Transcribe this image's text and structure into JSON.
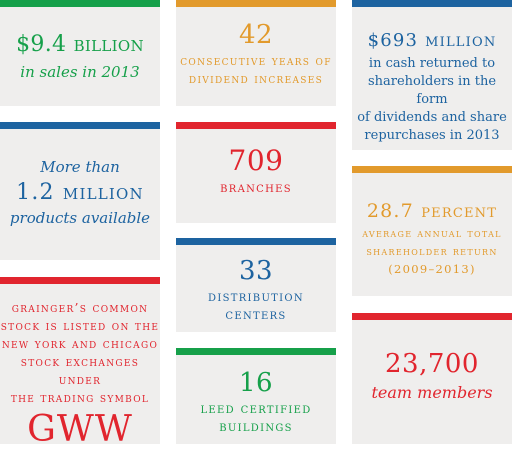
{
  "colors": {
    "green": "#16a04a",
    "orange": "#e29a2c",
    "blue": "#1d63a0",
    "red": "#e1252e",
    "tile_bg": "#efeeed"
  },
  "tiles": {
    "sales": {
      "value": "$9.4 billion",
      "caption": "in sales in 2013"
    },
    "dividend_years": {
      "value": "42",
      "caption_line1": "consecutive years of",
      "caption_line2": "dividend increases"
    },
    "cash_returned": {
      "value": "$693 million",
      "caption_line1": "in cash returned to",
      "caption_line2": "shareholders in the form",
      "caption_line3": "of dividends and share",
      "caption_line4": "repurchases in 2013"
    },
    "products": {
      "line1": "More than",
      "value": "1.2 million",
      "line3": "products available"
    },
    "branches": {
      "value": "709",
      "caption": "branches"
    },
    "shareholder_return": {
      "value": "28.7 percent",
      "caption_line1": "average annual total",
      "caption_line2": "shareholder return",
      "caption_line3": "(2009–2013)"
    },
    "distribution": {
      "value": "33",
      "caption_line1": "distribution",
      "caption_line2": "centers"
    },
    "stock": {
      "line1": "grainger’s common",
      "line2": "stock is listed on the",
      "line3": "new york and chicago",
      "line4": "stock exchanges under",
      "line5": "the trading symbol",
      "symbol": "GWW"
    },
    "leed": {
      "value": "16",
      "caption_line1": "leed certified",
      "caption_line2": "buildings"
    },
    "team": {
      "value": "23,700",
      "caption": "team members"
    }
  }
}
